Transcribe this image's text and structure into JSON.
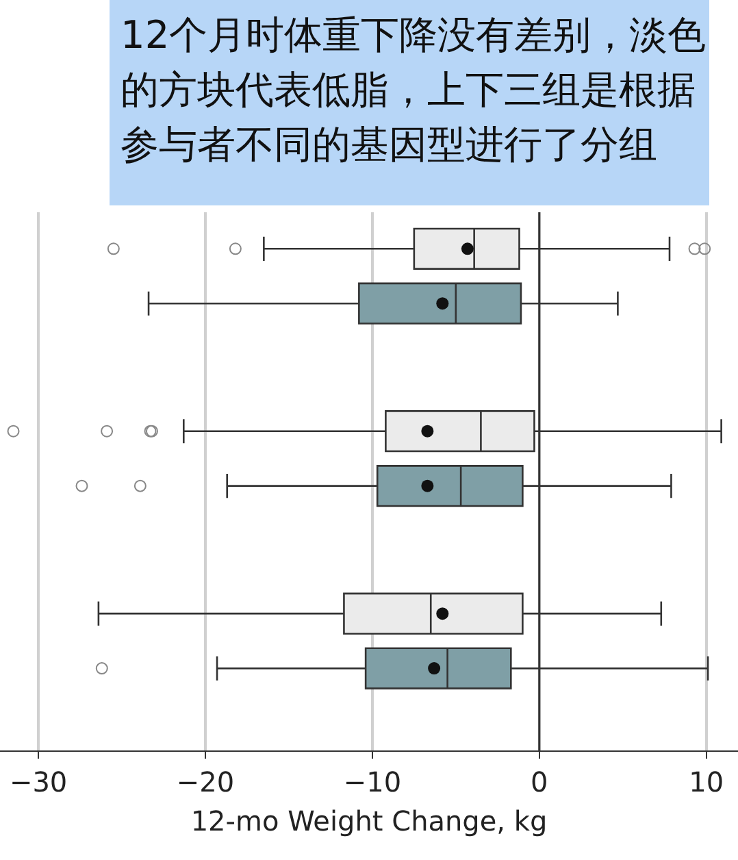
{
  "chart_data": {
    "type": "box",
    "title": "12个月时体重下降没有差别，淡色的方块代表低脂，上下三组是根据参与者不同的基因型进行了分组",
    "xlabel": "12-mo Weight Change, kg",
    "orientation": "horizontal",
    "categories": [
      null,
      null,
      null
    ],
    "series": [
      {
        "color": "#ebebeb",
        "boxes": [
          {
            "low": -16.5,
            "q1": -7.5,
            "median": -3.9,
            "q3": -1.2,
            "high": 7.8,
            "mean": -4.3,
            "outliers": [
              -25.5,
              -18.2,
              9.3,
              9.9
            ]
          },
          {
            "low": -21.3,
            "q1": -9.2,
            "median": -3.5,
            "q3": -0.3,
            "high": 10.9,
            "mean": -6.7,
            "outliers": [
              -31.5,
              -25.9,
              -23.3,
              -23.2
            ]
          },
          {
            "low": -26.4,
            "q1": -11.7,
            "median": -6.5,
            "q3": -1.0,
            "high": 7.3,
            "mean": -5.8
          }
        ]
      },
      {
        "color": "#7f9fa6",
        "boxes": [
          {
            "low": -23.4,
            "q1": -10.8,
            "median": -5.0,
            "q3": -1.1,
            "high": 4.7,
            "mean": -5.8
          },
          {
            "low": -18.7,
            "q1": -9.7,
            "median": -4.7,
            "q3": -1.0,
            "high": 7.9,
            "mean": -6.7,
            "outliers": [
              -27.4,
              -23.9
            ]
          },
          {
            "low": -19.3,
            "q1": -10.4,
            "median": -5.5,
            "q3": -1.7,
            "high": 10.1,
            "mean": -6.3,
            "outliers": [
              -26.2
            ]
          }
        ]
      }
    ],
    "xlim": [
      -32.3,
      11.9
    ],
    "xticks": [
      -30,
      -20,
      -10,
      0,
      10
    ],
    "grid": "x",
    "tick_labels": "x",
    "ref_lines": [
      {
        "axis": "x",
        "value": 0,
        "color": "#333333"
      }
    ]
  }
}
